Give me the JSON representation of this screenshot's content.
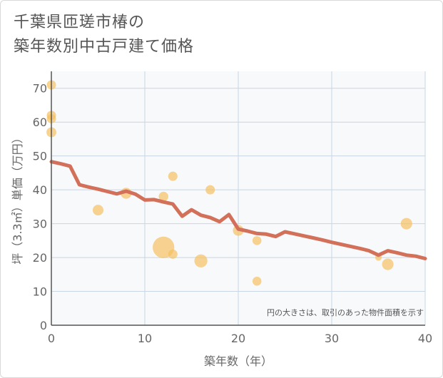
{
  "title_line1": "千葉県匝瑳市椿の",
  "title_line2": "築年数別中古戸建て価格",
  "chart_data": {
    "type": "scatter",
    "xlabel": "築年数（年）",
    "ylabel": "坪（3.3㎡）単価（万円）",
    "xlim": [
      0,
      40
    ],
    "ylim": [
      0,
      75
    ],
    "xticks": [
      0,
      10,
      20,
      30,
      40
    ],
    "yticks": [
      0,
      10,
      20,
      30,
      40,
      50,
      60,
      70
    ],
    "grid": true,
    "note": "円の大きさは、取引のあった物件面積を示す",
    "colors": {
      "bubble": "#f5c061",
      "line": "#d2705a",
      "grid": "#c9d6e3",
      "plot_bg": "#f7f9fb"
    },
    "points": [
      {
        "x": 0,
        "y": 71,
        "size": 1
      },
      {
        "x": 0,
        "y": 62,
        "size": 1
      },
      {
        "x": 0,
        "y": 61,
        "size": 1
      },
      {
        "x": 0,
        "y": 57,
        "size": 1.2
      },
      {
        "x": 5,
        "y": 34,
        "size": 1.5
      },
      {
        "x": 8,
        "y": 39,
        "size": 1.6
      },
      {
        "x": 12,
        "y": 38,
        "size": 1.1
      },
      {
        "x": 12,
        "y": 23,
        "size": 8.5
      },
      {
        "x": 13,
        "y": 44,
        "size": 1
      },
      {
        "x": 13,
        "y": 21,
        "size": 1
      },
      {
        "x": 16,
        "y": 19,
        "size": 2.5
      },
      {
        "x": 17,
        "y": 40,
        "size": 1
      },
      {
        "x": 20,
        "y": 28,
        "size": 1.5
      },
      {
        "x": 22,
        "y": 25,
        "size": 0.9
      },
      {
        "x": 22,
        "y": 13,
        "size": 0.9
      },
      {
        "x": 35,
        "y": 20,
        "size": 0.3
      },
      {
        "x": 36,
        "y": 18,
        "size": 1.8
      },
      {
        "x": 38,
        "y": 30,
        "size": 1.8
      }
    ],
    "trend": [
      [
        0,
        48.3
      ],
      [
        1,
        47.7
      ],
      [
        2,
        47
      ],
      [
        3,
        41.5
      ],
      [
        4,
        40.8
      ],
      [
        5,
        40.2
      ],
      [
        6,
        39.5
      ],
      [
        7,
        38.8
      ],
      [
        8,
        39.6
      ],
      [
        9,
        38.7
      ],
      [
        10,
        37
      ],
      [
        11,
        37.1
      ],
      [
        12,
        36.4
      ],
      [
        13,
        35.8
      ],
      [
        14,
        32.2
      ],
      [
        15,
        34.1
      ],
      [
        16,
        32.5
      ],
      [
        17,
        31.8
      ],
      [
        18,
        30.6
      ],
      [
        19,
        32.7
      ],
      [
        20,
        28.4
      ],
      [
        21,
        27.8
      ],
      [
        22,
        27.1
      ],
      [
        23,
        26.9
      ],
      [
        24,
        26.2
      ],
      [
        25,
        27.6
      ],
      [
        26,
        27
      ],
      [
        27,
        26.4
      ],
      [
        28,
        25.8
      ],
      [
        29,
        25.2
      ],
      [
        30,
        24.5
      ],
      [
        31,
        23.9
      ],
      [
        32,
        23.3
      ],
      [
        33,
        22.7
      ],
      [
        34,
        22
      ],
      [
        35,
        20.7
      ],
      [
        36,
        22
      ],
      [
        37,
        21.4
      ],
      [
        38,
        20.7
      ],
      [
        39,
        20.4
      ],
      [
        40,
        19.7
      ]
    ]
  }
}
